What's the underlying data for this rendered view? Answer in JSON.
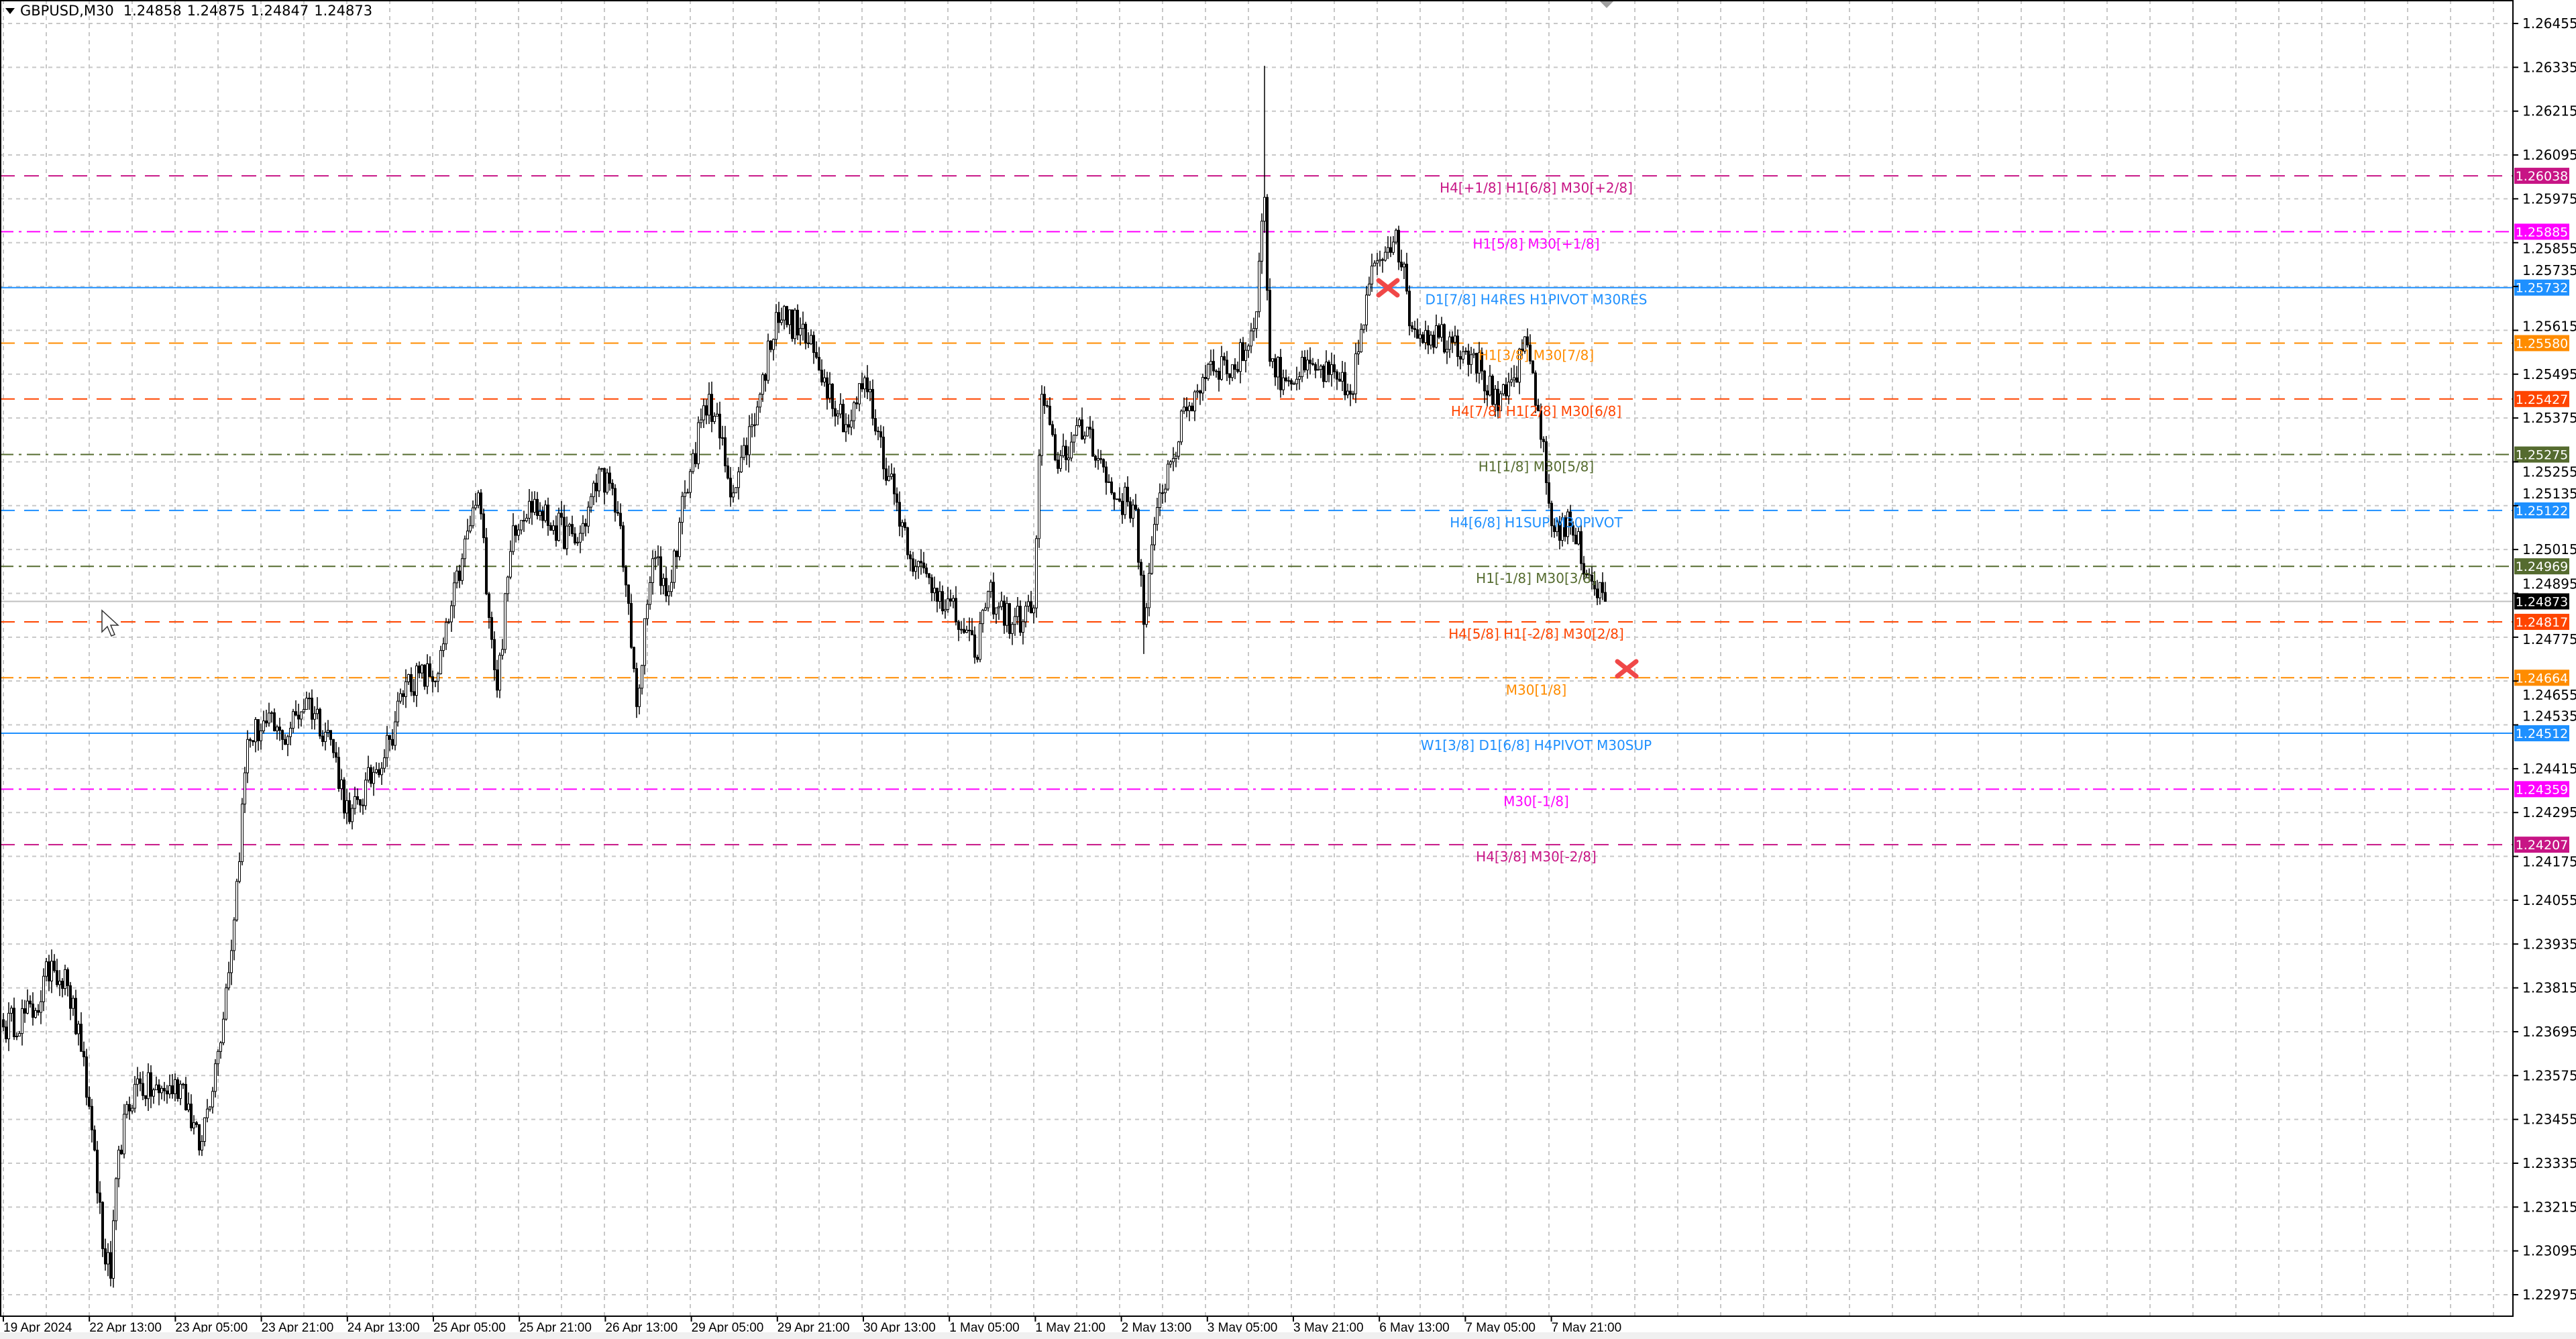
{
  "header": {
    "symbol": "GBPUSD,M30",
    "open": "1.24858",
    "high": "1.24875",
    "low": "1.24847",
    "close": "1.24873"
  },
  "price_axis": {
    "ticks": [
      "1.26455",
      "1.26335",
      "1.26215",
      "1.26095",
      "1.25975",
      "1.25855",
      "1.25735",
      "1.25615",
      "1.25495",
      "1.25375",
      "1.25255",
      "1.25135",
      "1.25015",
      "1.24895",
      "1.24775",
      "1.24655",
      "1.24535",
      "1.24415",
      "1.24295",
      "1.24175",
      "1.24055",
      "1.23935",
      "1.23815",
      "1.23695",
      "1.23575",
      "1.23455",
      "1.23335",
      "1.23215",
      "1.23095",
      "1.22975"
    ]
  },
  "time_axis": {
    "labels": [
      "19 Apr 2024",
      "22 Apr 13:00",
      "23 Apr 05:00",
      "23 Apr 21:00",
      "24 Apr 13:00",
      "25 Apr 05:00",
      "25 Apr 21:00",
      "26 Apr 13:00",
      "29 Apr 05:00",
      "29 Apr 21:00",
      "30 Apr 13:00",
      "1 May 05:00",
      "1 May 21:00",
      "2 May 13:00",
      "3 May 05:00",
      "3 May 21:00",
      "6 May 13:00",
      "7 May 05:00",
      "7 May 21:00"
    ]
  },
  "current_price": {
    "value": "1.24873",
    "color": "#000000"
  },
  "levels": [
    {
      "price": "1.26038",
      "label": "H4[+1/8] H1[6/8] M30[+2/8]",
      "color": "#C71585",
      "style": "dashed"
    },
    {
      "price": "1.25885",
      "label": "H1[5/8] M30[+1/8]",
      "color": "#FF00FF",
      "style": "dashdot"
    },
    {
      "price": "1.25732",
      "label": "D1[7/8] H4RES H1PIVOT M30RES",
      "color": "#1E90FF",
      "style": "solid"
    },
    {
      "price": "1.25580",
      "label": "H1[3/8] M30[7/8]",
      "color": "#FF8C00",
      "style": "dashed"
    },
    {
      "price": "1.25427",
      "label": "H4[7/8] H1[2/8] M30[6/8]",
      "color": "#FF4500",
      "style": "dashed"
    },
    {
      "price": "1.25275",
      "label": "H1[1/8] M30[5/8]",
      "color": "#556B2F",
      "style": "dashdot"
    },
    {
      "price": "1.25122",
      "label": "H4[6/8] H1SUP M30PIVOT",
      "color": "#1E90FF",
      "style": "dashed"
    },
    {
      "price": "1.24969",
      "label": "H1[-1/8] M30[3/8]",
      "color": "#556B2F",
      "style": "dashdot"
    },
    {
      "price": "1.24817",
      "label": "H4[5/8] H1[-2/8] M30[2/8]",
      "color": "#FF4500",
      "style": "dashed"
    },
    {
      "price": "1.24664",
      "label": "M30[1/8]",
      "color": "#FF8C00",
      "style": "dashdot"
    },
    {
      "price": "1.24512",
      "label": "W1[3/8] D1[6/8] H4PIVOT M30SUP",
      "color": "#1E90FF",
      "style": "solid"
    },
    {
      "price": "1.24359",
      "label": "M30[-1/8]",
      "color": "#FF00FF",
      "style": "dashdot"
    },
    {
      "price": "1.24207",
      "label": "H4[3/8] M30[-2/8]",
      "color": "#C71585",
      "style": "dashed"
    }
  ],
  "chart_data": {
    "type": "candlestick",
    "symbol": "GBPUSD",
    "timeframe": "M30",
    "ylim": [
      1.229,
      1.265
    ],
    "grid": true,
    "close_path": [
      [
        0,
        1.23708
      ],
      [
        12,
        1.23753
      ],
      [
        18,
        1.23888
      ],
      [
        24,
        1.23821
      ],
      [
        29,
        1.23641
      ],
      [
        34,
        1.23371
      ],
      [
        37,
        1.23101
      ],
      [
        40,
        1.2302
      ],
      [
        43,
        1.23371
      ],
      [
        49,
        1.23551
      ],
      [
        58,
        1.23528
      ],
      [
        67,
        1.23551
      ],
      [
        73,
        1.23371
      ],
      [
        80,
        1.23641
      ],
      [
        86,
        1.24001
      ],
      [
        91,
        1.24495
      ],
      [
        98,
        1.2454
      ],
      [
        104,
        1.24495
      ],
      [
        113,
        1.24608
      ],
      [
        122,
        1.24495
      ],
      [
        129,
        1.2427
      ],
      [
        138,
        1.24405
      ],
      [
        144,
        1.24495
      ],
      [
        150,
        1.24653
      ],
      [
        162,
        1.24675
      ],
      [
        171,
        1.2499
      ],
      [
        177,
        1.2517
      ],
      [
        184,
        1.2463
      ],
      [
        190,
        1.2508
      ],
      [
        196,
        1.25147
      ],
      [
        205,
        1.2508
      ],
      [
        214,
        1.25035
      ],
      [
        223,
        1.25237
      ],
      [
        230,
        1.2508
      ],
      [
        236,
        1.24585
      ],
      [
        242,
        1.2499
      ],
      [
        248,
        1.249
      ],
      [
        254,
        1.2517
      ],
      [
        263,
        1.2544
      ],
      [
        272,
        1.2517
      ],
      [
        282,
        1.2544
      ],
      [
        288,
        1.25664
      ],
      [
        297,
        1.2562
      ],
      [
        306,
        1.25485
      ],
      [
        315,
        1.2535
      ],
      [
        321,
        1.25485
      ],
      [
        330,
        1.25215
      ],
      [
        340,
        1.24968
      ],
      [
        349,
        1.249
      ],
      [
        358,
        1.24788
      ],
      [
        362,
        1.2472
      ],
      [
        367,
        1.249
      ],
      [
        376,
        1.2481
      ],
      [
        384,
        1.24855
      ],
      [
        387,
        1.2544
      ],
      [
        392,
        1.2526
      ],
      [
        404,
        1.2535
      ],
      [
        413,
        1.2517
      ],
      [
        422,
        1.25125
      ],
      [
        425,
        1.2481
      ],
      [
        431,
        1.2517
      ],
      [
        441,
        1.25395
      ],
      [
        450,
        1.2553
      ],
      [
        459,
        1.25508
      ],
      [
        466,
        1.2562
      ],
      [
        470,
        1.25979
      ],
      [
        472,
        1.2553
      ],
      [
        477,
        1.25485
      ],
      [
        490,
        1.25508
      ],
      [
        502,
        1.2544
      ],
      [
        511,
        1.25799
      ],
      [
        519,
        1.25889
      ],
      [
        525,
        1.2562
      ],
      [
        539,
        1.25597
      ],
      [
        548,
        1.25552
      ],
      [
        557,
        1.25395
      ],
      [
        563,
        1.25485
      ],
      [
        568,
        1.25575
      ],
      [
        572,
        1.25395
      ],
      [
        577,
        1.2508
      ],
      [
        584,
        1.2508
      ],
      [
        591,
        1.24945
      ],
      [
        597,
        1.24873
      ]
    ],
    "extremes": [
      {
        "bar": 470,
        "high": 1.26339
      },
      {
        "bar": 40,
        "low": 1.22998
      },
      {
        "bar": 236,
        "low": 1.24554
      },
      {
        "bar": 425,
        "low": 1.24729
      }
    ]
  }
}
